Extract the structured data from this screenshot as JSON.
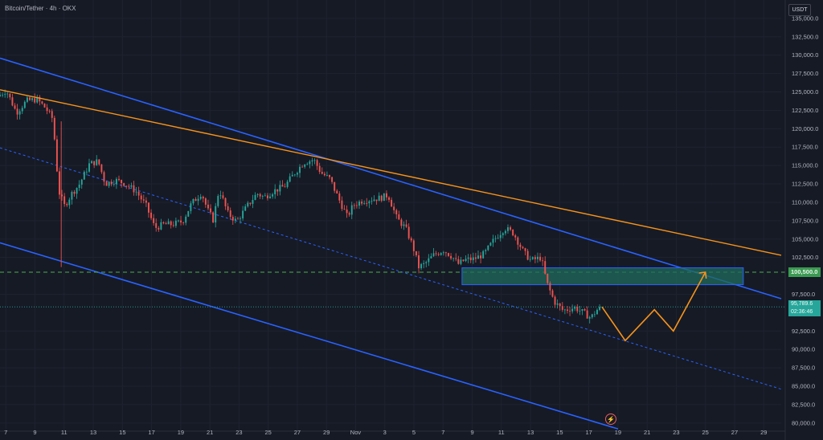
{
  "header": {
    "title": "Bitcoin/Tether · 4h · OKX"
  },
  "price_scale": {
    "currency": "USDT",
    "level_label": "100,500.0",
    "last_price": "95,789.6",
    "countdown": "02:36:46"
  },
  "colors": {
    "background": "#161a25",
    "grid": "#1f2330",
    "up_candle": "#26a69a",
    "down_candle": "#ef5350",
    "channel_line": "#2962ff",
    "trend_line": "#f7931a",
    "level_line": "#4caf50",
    "zone_fill": "#1f6b5c",
    "zone_border": "#2962ff",
    "projection": "#f7931a"
  },
  "chart_data": {
    "type": "candlestick",
    "symbol": "Bitcoin/Tether",
    "timeframe": "4h",
    "exchange": "OKX",
    "x_tick_labels": [
      "7",
      "9",
      "11",
      "13",
      "15",
      "17",
      "19",
      "21",
      "23",
      "25",
      "27",
      "29",
      "Nov",
      "3",
      "5",
      "7",
      "9",
      "11",
      "13",
      "15",
      "17",
      "19",
      "21",
      "23",
      "25",
      "27",
      "29"
    ],
    "y_tick_labels": [
      "135,000.0",
      "132,500.0",
      "130,000.0",
      "127,500.0",
      "125,000.0",
      "122,500.0",
      "120,000.0",
      "117,500.0",
      "115,000.0",
      "112,500.0",
      "110,000.0",
      "107,500.0",
      "105,000.0",
      "102,500.0",
      "97,500.0",
      "92,500.0",
      "90,000.0",
      "87,500.0",
      "85,000.0",
      "82,500.0",
      "80,000.0"
    ],
    "y_ticks": [
      135000,
      132500,
      130000,
      127500,
      125000,
      122500,
      120000,
      117500,
      115000,
      112500,
      110000,
      107500,
      105000,
      102500,
      97500,
      92500,
      90000,
      87500,
      85000,
      82500,
      80000
    ],
    "ylim": [
      79000,
      137500
    ],
    "x_start_day": 6.6,
    "x_end_day": 60.2,
    "grid": true,
    "horizontal_level": 100500,
    "last_price": 95789.6,
    "anchors": [
      [
        6.6,
        124400
      ],
      [
        7.2,
        125200
      ],
      [
        7.9,
        122200
      ],
      [
        8.6,
        123800
      ],
      [
        9.3,
        124000
      ],
      [
        9.9,
        122800
      ],
      [
        10.4,
        121300
      ],
      [
        10.8,
        111500
      ],
      [
        11.2,
        109500
      ],
      [
        11.7,
        111200
      ],
      [
        12.2,
        112400
      ],
      [
        12.9,
        115200
      ],
      [
        13.5,
        115600
      ],
      [
        14.0,
        112500
      ],
      [
        14.7,
        113000
      ],
      [
        15.3,
        112600
      ],
      [
        16.1,
        111500
      ],
      [
        16.8,
        109500
      ],
      [
        17.4,
        106500
      ],
      [
        18.0,
        107000
      ],
      [
        18.6,
        107000
      ],
      [
        19.3,
        107400
      ],
      [
        19.9,
        109800
      ],
      [
        20.6,
        111300
      ],
      [
        21.0,
        109000
      ],
      [
        21.4,
        107600
      ],
      [
        21.8,
        111800
      ],
      [
        22.4,
        108500
      ],
      [
        23.0,
        107400
      ],
      [
        23.7,
        109400
      ],
      [
        24.4,
        111200
      ],
      [
        24.9,
        110700
      ],
      [
        25.5,
        111500
      ],
      [
        26.3,
        112200
      ],
      [
        27.0,
        114000
      ],
      [
        27.6,
        115400
      ],
      [
        28.3,
        115800
      ],
      [
        28.8,
        114000
      ],
      [
        29.4,
        113200
      ],
      [
        30.0,
        110500
      ],
      [
        30.6,
        108000
      ],
      [
        31.0,
        109600
      ],
      [
        31.6,
        110200
      ],
      [
        32.2,
        110400
      ],
      [
        32.9,
        110600
      ],
      [
        33.4,
        111000
      ],
      [
        34.0,
        107800
      ],
      [
        34.6,
        106500
      ],
      [
        35.1,
        104000
      ],
      [
        35.5,
        101200
      ],
      [
        35.9,
        101600
      ],
      [
        36.5,
        102800
      ],
      [
        37.2,
        103500
      ],
      [
        37.8,
        102600
      ],
      [
        38.2,
        101600
      ],
      [
        38.7,
        102200
      ],
      [
        39.3,
        102300
      ],
      [
        40.0,
        103000
      ],
      [
        40.7,
        105000
      ],
      [
        41.4,
        106500
      ],
      [
        42.0,
        105800
      ],
      [
        42.7,
        103200
      ],
      [
        43.2,
        102100
      ],
      [
        43.9,
        102500
      ],
      [
        44.3,
        99000
      ],
      [
        44.8,
        96500
      ],
      [
        45.4,
        95300
      ],
      [
        46.2,
        95700
      ],
      [
        46.8,
        95000
      ],
      [
        47.3,
        94300
      ],
      [
        47.9,
        95790
      ]
    ],
    "candle_spacing_days": 0.17,
    "channel_upper": {
      "from": [
        6.6,
        129600
      ],
      "to": [
        60.2,
        96900
      ]
    },
    "channel_mid": {
      "from": [
        6.6,
        117400
      ],
      "to": [
        60.2,
        84600
      ]
    },
    "channel_lower": {
      "from": [
        6.6,
        104500
      ],
      "to": [
        49.0,
        79200
      ]
    },
    "trend_line": {
      "from": [
        6.6,
        125300
      ],
      "to": [
        60.2,
        102800
      ]
    },
    "zone": {
      "x1": 38.3,
      "x2": 57.6,
      "y1": 101100,
      "y2": 98800
    },
    "projection": [
      [
        47.9,
        95790
      ],
      [
        49.5,
        91200
      ],
      [
        51.5,
        95400
      ],
      [
        52.8,
        92500
      ],
      [
        55.0,
        100500
      ]
    ],
    "projection_arrow_end": [
      55.0,
      100500
    ]
  }
}
